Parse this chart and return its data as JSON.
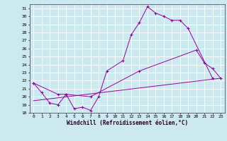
{
  "bg_color": "#cce9f0",
  "grid_color": "#ffffff",
  "line_color": "#990099",
  "xlim": [
    -0.5,
    23.5
  ],
  "ylim": [
    18,
    31.5
  ],
  "xticks": [
    0,
    1,
    2,
    3,
    4,
    5,
    6,
    7,
    8,
    9,
    10,
    11,
    12,
    13,
    14,
    15,
    16,
    17,
    18,
    19,
    20,
    21,
    22,
    23
  ],
  "yticks": [
    18,
    19,
    20,
    21,
    22,
    23,
    24,
    25,
    26,
    27,
    28,
    29,
    30,
    31
  ],
  "xlabel": "Windchill (Refroidissement éolien,°C)",
  "line1_x": [
    0,
    1,
    2,
    3,
    4,
    5,
    6,
    7,
    8,
    9,
    11,
    12,
    13,
    14,
    15,
    16,
    17,
    18,
    19,
    22
  ],
  "line1_y": [
    21.7,
    20.5,
    19.2,
    19.0,
    20.3,
    18.5,
    18.7,
    18.3,
    20.0,
    23.2,
    24.5,
    27.7,
    29.2,
    31.2,
    30.4,
    30.0,
    29.5,
    29.5,
    28.5,
    22.3
  ],
  "line2_x": [
    0,
    3,
    4,
    7,
    13,
    20,
    21,
    22,
    23
  ],
  "line2_y": [
    21.7,
    20.3,
    20.3,
    20.0,
    23.2,
    25.8,
    24.2,
    23.5,
    22.3
  ],
  "line3_x": [
    0,
    23
  ],
  "line3_y": [
    19.5,
    22.3
  ]
}
